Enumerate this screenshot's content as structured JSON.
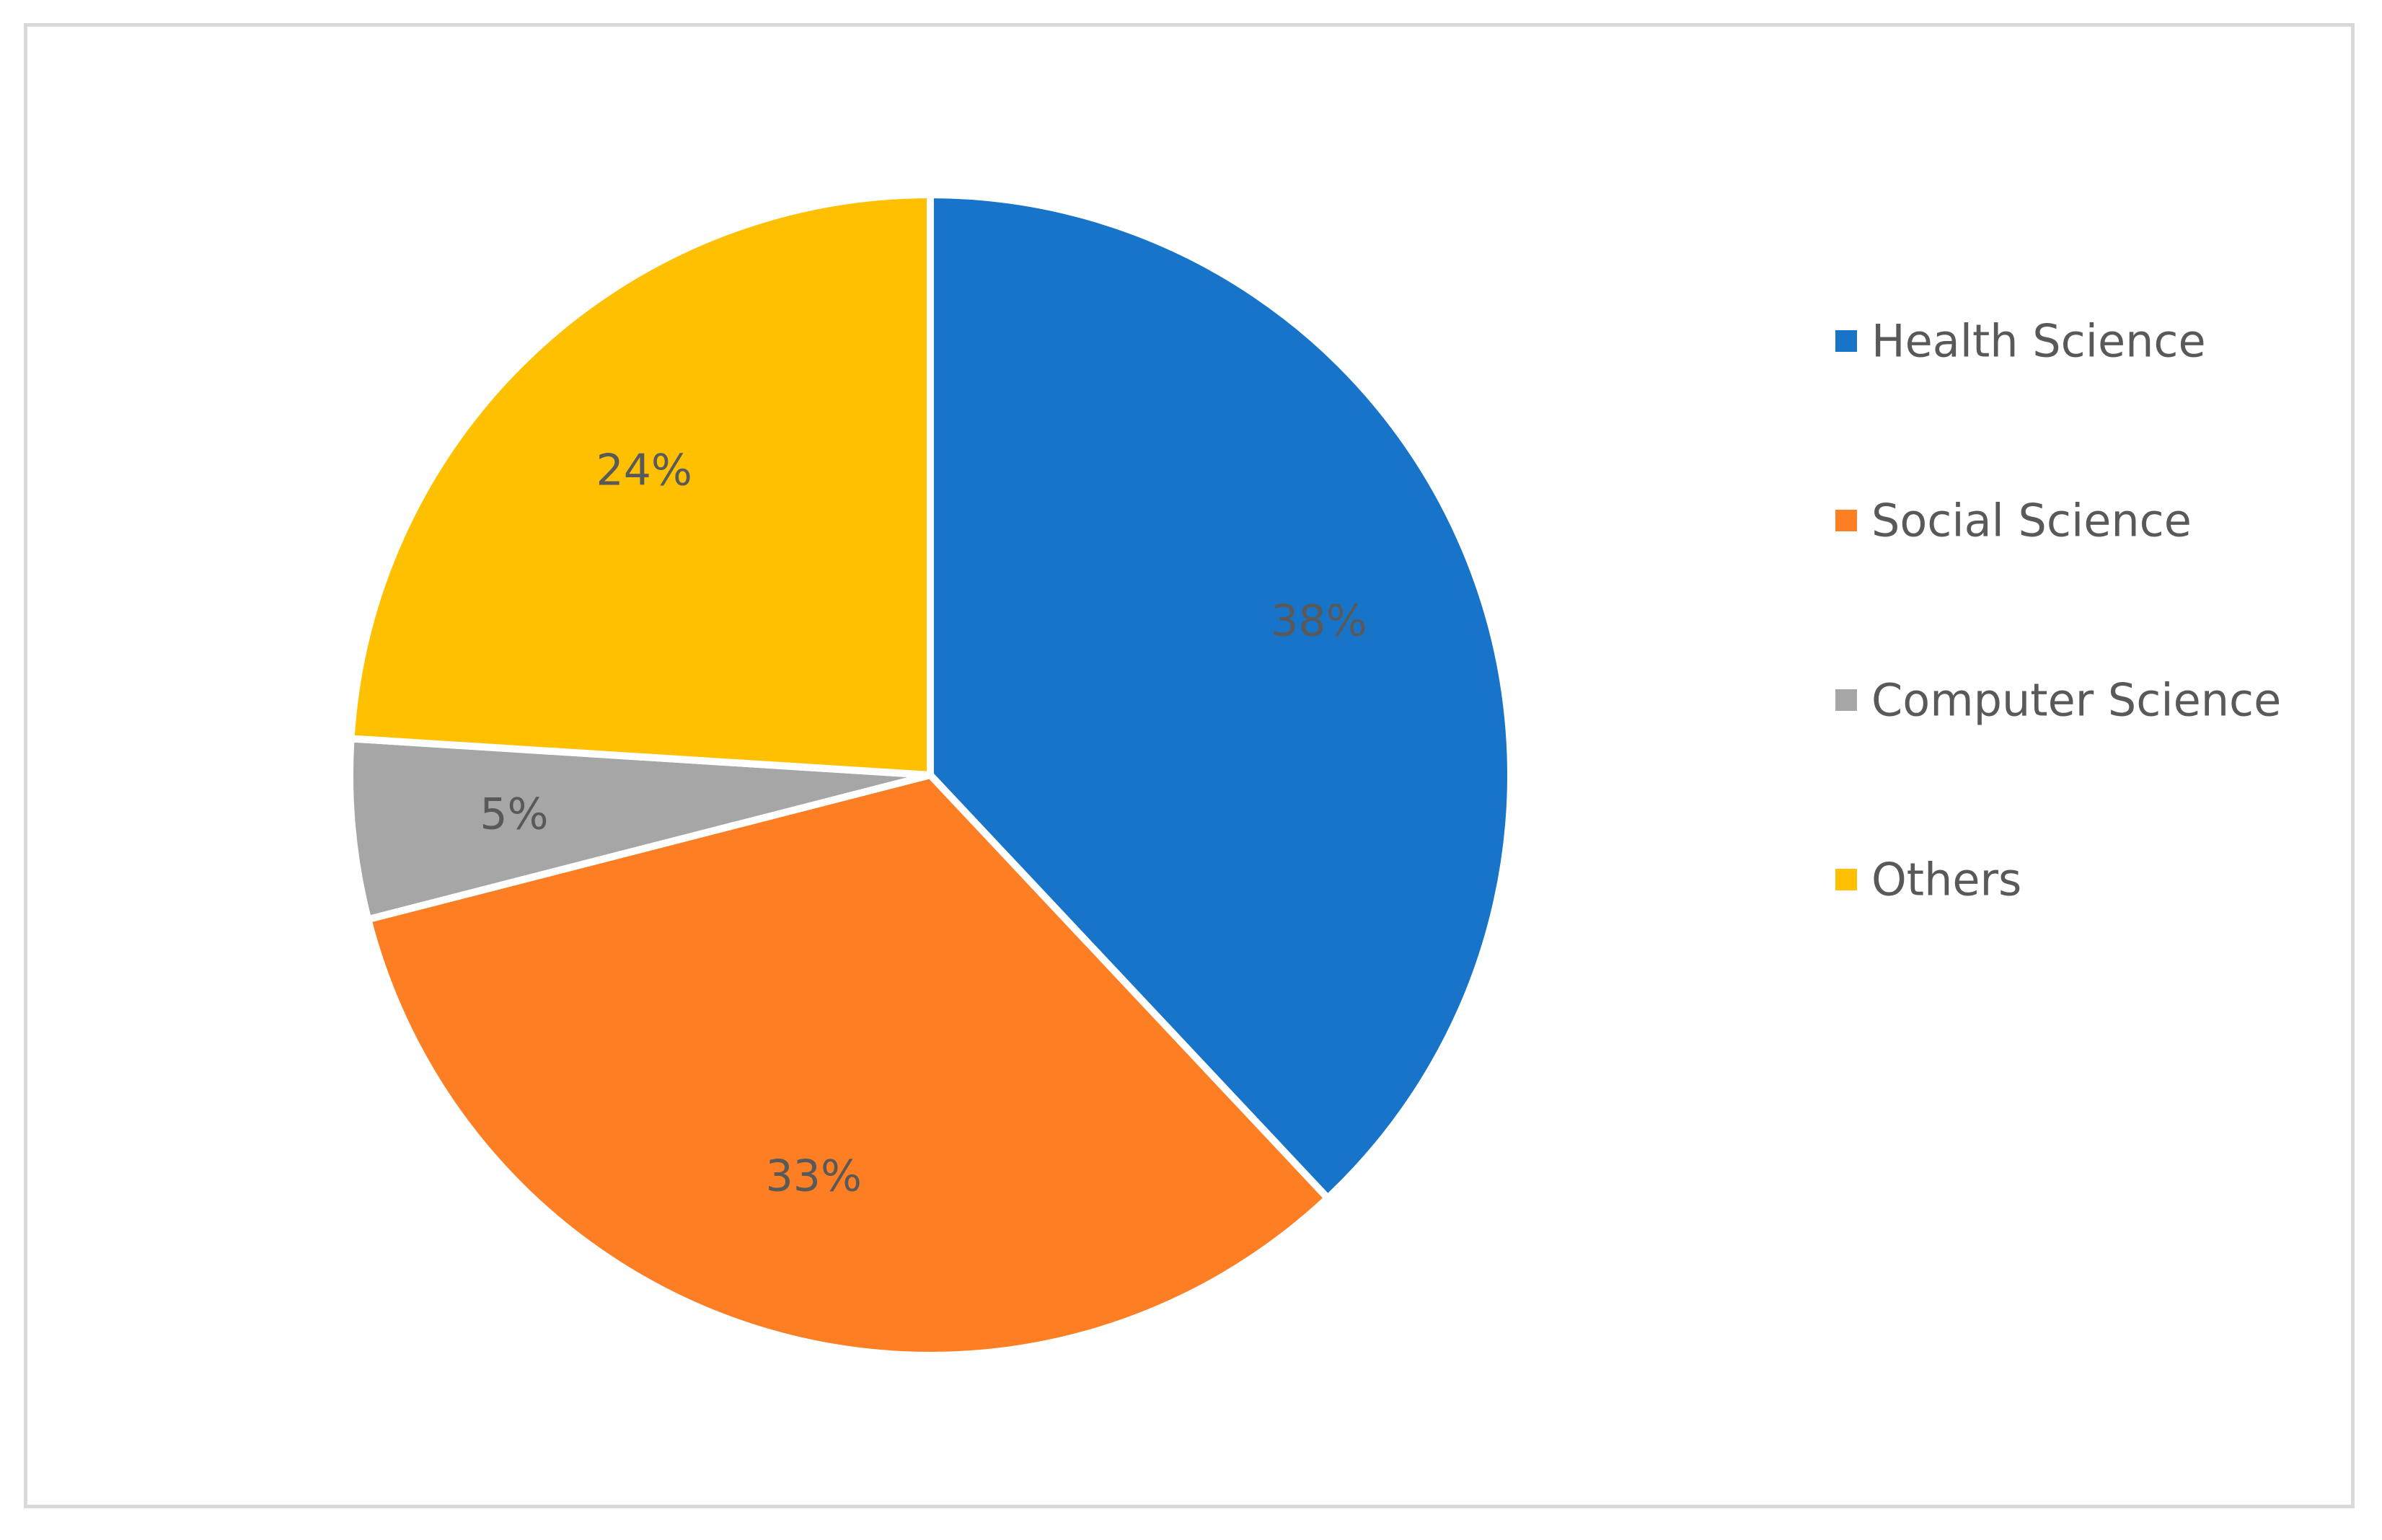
{
  "chart_data": {
    "type": "pie",
    "categories": [
      "Health Science",
      "Social Science",
      "Computer Science",
      "Others"
    ],
    "values": [
      38,
      33,
      5,
      24
    ],
    "data_labels": [
      "38%",
      "33%",
      "5%",
      "24%"
    ],
    "colors": [
      "#1874c8",
      "#fd7e23",
      "#a6a6a6",
      "#fec000"
    ],
    "legend_position": "right",
    "title": "",
    "start_angle": "12 o'clock, clockwise"
  }
}
